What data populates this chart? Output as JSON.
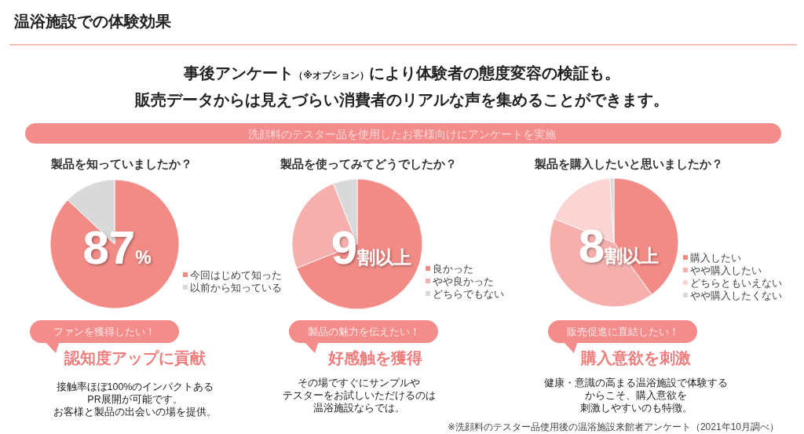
{
  "chart_data": [
    {
      "type": "other",
      "title": "温浴施設での体験効果",
      "subtitle": "事後アンケート（※オプション）により体験者の態度変容の検証も。",
      "annotations": [
        "販売データからは見えづらい消費者のリアルな声を集めることができます。",
        "洗顔料のテスター品を使用したお客様向けにアンケートを実施",
        "※洗顔料のテスター品使用後の温浴施設来館者アンケート（2021年10月調べ）"
      ]
    },
    {
      "type": "pie",
      "title": "製品を知っていましたか？",
      "categories": [
        "今回はじめて知った",
        "以前から知っている"
      ],
      "values": [
        87,
        13
      ],
      "colors": [
        "#f28b86",
        "#d9d9d9"
      ],
      "legend": "right",
      "annotations": [
        "87%",
        "ファンを獲得したい！",
        "認知度アップに貢献",
        "接触率ほぼ100%のインパクトある",
        "PR展開が可能です。",
        "お客様と製品の出会いの場を提供。"
      ]
    },
    {
      "type": "pie",
      "title": "製品を使ってみてどうでしたか？",
      "categories": [
        "良かった",
        "やや良かった",
        "どちらでもない"
      ],
      "values": [
        69,
        25,
        6
      ],
      "colors": [
        "#f28b86",
        "#f5b0ad",
        "#d9d9d9"
      ],
      "legend": "right",
      "annotations": [
        "9割以上",
        "製品の魅力を伝えたい！",
        "好感触を獲得",
        "その場ですぐにサンプルや",
        "テスターをお試しいただけるのは",
        "温浴施設ならでは。"
      ]
    },
    {
      "type": "pie",
      "title": "製品を購入したいと思いましたか？",
      "categories": [
        "購入したい",
        "やや購入したい",
        "どちらともいえない",
        "やや購入したくない"
      ],
      "values": [
        40,
        41,
        18,
        1
      ],
      "colors": [
        "#f28b86",
        "#f5b0ad",
        "#fad5d3",
        "#d9d9d9"
      ],
      "legend": "right",
      "annotations": [
        "8割以上",
        "販売促進に直結したい！",
        "購入意欲を刺激",
        "健康・意識の高まる温浴施設で体験する",
        "からこそ、購入意欲を",
        "刺激しやすいのも特徴。"
      ]
    }
  ]
}
